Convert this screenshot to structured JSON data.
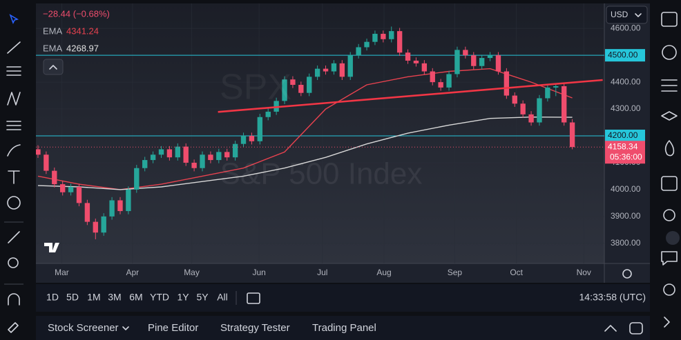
{
  "header": {
    "change": "−28.44 (−0.68%)",
    "indicators": [
      {
        "name": "EMA",
        "value": 4341.24
      },
      {
        "name": "EMA",
        "value": 4268.97
      }
    ]
  },
  "currency": "USD",
  "chart_data": {
    "type": "candlestick",
    "watermark": "S&P 500 Index",
    "watermark_symbol": "SPX",
    "up_color": "#26a69a",
    "down_color": "#ef4d6d",
    "xlim": [
      -0.25,
      68.9
    ],
    "ylim": [
      3725,
      4693
    ],
    "xticks": [
      {
        "value": 2.9,
        "label": "Mar"
      },
      {
        "value": 11.5,
        "label": "Apr"
      },
      {
        "value": 18.7,
        "label": "May"
      },
      {
        "value": 26.9,
        "label": "Jun"
      },
      {
        "value": 34.6,
        "label": "Jul"
      },
      {
        "value": 42.1,
        "label": "Aug"
      },
      {
        "value": 50.7,
        "label": "Sep"
      },
      {
        "value": 58.2,
        "label": "Oct"
      },
      {
        "value": 66.4,
        "label": "Nov"
      }
    ],
    "yticks": [
      {
        "value": 3800,
        "label": "3800.00"
      },
      {
        "value": 3900,
        "label": "3900.00"
      },
      {
        "value": 4000,
        "label": "4000.00"
      },
      {
        "value": 4100,
        "label": "4100.00"
      },
      {
        "value": 4200,
        "label": "4200.00"
      },
      {
        "value": 4300,
        "label": "4300.00"
      },
      {
        "value": 4400,
        "label": "4400.00"
      },
      {
        "value": 4500,
        "label": "4500.00"
      },
      {
        "value": 4600,
        "label": "4600.00"
      }
    ],
    "grid": true,
    "candles": [
      [
        4150,
        4165,
        4118,
        4130
      ],
      [
        4130,
        4142,
        4058,
        4070
      ],
      [
        4070,
        4082,
        4008,
        4020
      ],
      [
        4020,
        4032,
        3978,
        3990
      ],
      [
        3990,
        4022,
        3978,
        4010
      ],
      [
        4010,
        4022,
        3938,
        3950
      ],
      [
        3950,
        3962,
        3868,
        3880
      ],
      [
        3880,
        3892,
        3815,
        3840
      ],
      [
        3840,
        3912,
        3828,
        3900
      ],
      [
        3900,
        3972,
        3888,
        3960
      ],
      [
        3960,
        3972,
        3908,
        3920
      ],
      [
        3920,
        4012,
        3908,
        4000
      ],
      [
        4000,
        4092,
        3988,
        4080
      ],
      [
        4080,
        4122,
        4068,
        4110
      ],
      [
        4110,
        4142,
        4098,
        4130
      ],
      [
        4130,
        4162,
        4118,
        4150
      ],
      [
        4150,
        4162,
        4108,
        4120
      ],
      [
        4120,
        4172,
        4108,
        4160
      ],
      [
        4160,
        4172,
        4088,
        4100
      ],
      [
        4100,
        4112,
        4068,
        4080
      ],
      [
        4080,
        4142,
        4068,
        4130
      ],
      [
        4130,
        4142,
        4098,
        4110
      ],
      [
        4110,
        4152,
        4098,
        4140
      ],
      [
        4140,
        4152,
        4108,
        4120
      ],
      [
        4120,
        4182,
        4108,
        4170
      ],
      [
        4170,
        4212,
        4158,
        4200
      ],
      [
        4200,
        4212,
        4168,
        4180
      ],
      [
        4180,
        4282,
        4168,
        4270
      ],
      [
        4270,
        4302,
        4258,
        4290
      ],
      [
        4290,
        4342,
        4278,
        4330
      ],
      [
        4330,
        4422,
        4318,
        4410
      ],
      [
        4410,
        4422,
        4378,
        4390
      ],
      [
        4390,
        4402,
        4348,
        4360
      ],
      [
        4360,
        4432,
        4348,
        4420
      ],
      [
        4420,
        4462,
        4408,
        4450
      ],
      [
        4450,
        4462,
        4428,
        4440
      ],
      [
        4440,
        4482,
        4428,
        4470
      ],
      [
        4470,
        4482,
        4408,
        4420
      ],
      [
        4420,
        4512,
        4408,
        4500
      ],
      [
        4500,
        4542,
        4488,
        4530
      ],
      [
        4530,
        4562,
        4518,
        4550
      ],
      [
        4550,
        4592,
        4538,
        4580
      ],
      [
        4580,
        4592,
        4548,
        4560
      ],
      [
        4560,
        4607,
        4548,
        4590
      ],
      [
        4590,
        4602,
        4498,
        4510
      ],
      [
        4510,
        4522,
        4468,
        4480
      ],
      [
        4480,
        4492,
        4458,
        4470
      ],
      [
        4470,
        4482,
        4428,
        4440
      ],
      [
        4440,
        4452,
        4388,
        4400
      ],
      [
        4400,
        4412,
        4368,
        4380
      ],
      [
        4380,
        4442,
        4368,
        4430
      ],
      [
        4430,
        4532,
        4418,
        4520
      ],
      [
        4520,
        4532,
        4488,
        4500
      ],
      [
        4500,
        4512,
        4448,
        4460
      ],
      [
        4460,
        4502,
        4448,
        4490
      ],
      [
        4490,
        4512,
        4478,
        4500
      ],
      [
        4500,
        4512,
        4428,
        4440
      ],
      [
        4440,
        4452,
        4338,
        4350
      ],
      [
        4350,
        4362,
        4308,
        4320
      ],
      [
        4320,
        4332,
        4268,
        4280
      ],
      [
        4280,
        4292,
        4238,
        4250
      ],
      [
        4250,
        4352,
        4238,
        4340
      ],
      [
        4340,
        4392,
        4328,
        4380
      ],
      [
        4380,
        4395,
        4348,
        4385
      ],
      [
        4385,
        4397,
        4238,
        4250
      ],
      [
        4250,
        4262,
        4150,
        4158.34
      ]
    ],
    "series": [
      {
        "name": "EMA",
        "color": "#e8424f",
        "x": [
          0,
          5,
          10,
          15,
          20,
          25,
          30,
          35,
          40,
          45,
          50,
          55,
          60,
          65
        ],
        "values": [
          4050,
          4020,
          4000,
          4020,
          4050,
          4080,
          4140,
          4300,
          4390,
          4420,
          4440,
          4450,
          4400,
          4341.24
        ]
      },
      {
        "name": "EMA",
        "color": "#d8d8d8",
        "x": [
          0,
          5,
          10,
          15,
          20,
          25,
          30,
          35,
          40,
          45,
          50,
          55,
          60,
          65
        ],
        "values": [
          4015,
          4010,
          4000,
          4010,
          4030,
          4050,
          4080,
          4120,
          4170,
          4210,
          4240,
          4265,
          4270,
          4268.97
        ]
      }
    ],
    "levels": [
      {
        "value": 4500,
        "label": "4500.00",
        "color": "#26c6da"
      },
      {
        "value": 4200,
        "label": "4200.00",
        "color": "#26c6da"
      }
    ],
    "trendline": {
      "x": [
        21.9,
        68.7
      ],
      "values": [
        4289,
        4408
      ],
      "color": "#f23645"
    },
    "countdown": "05:36:00"
  },
  "ranges": [
    "1D",
    "5D",
    "1M",
    "3M",
    "6M",
    "YTD",
    "1Y",
    "5Y",
    "All"
  ],
  "clock": "14:33:58 (UTC)",
  "tabs": [
    "Stock Screener",
    "Pine Editor",
    "Strategy Tester",
    "Trading Panel"
  ]
}
